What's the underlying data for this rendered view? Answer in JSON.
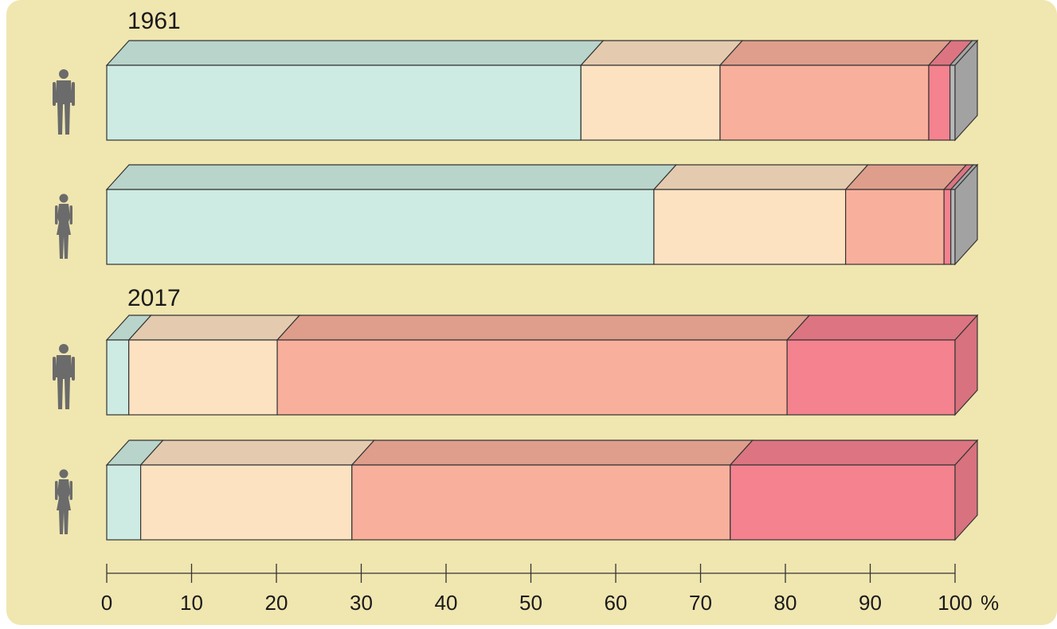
{
  "chart_data": {
    "type": "bar",
    "orientation": "horizontal",
    "stacked": true,
    "style": "3d-bars",
    "background_color": "#f0e6b0",
    "xlim": [
      0,
      100
    ],
    "x_ticks": [
      0,
      10,
      20,
      30,
      40,
      50,
      60,
      70,
      80,
      90,
      100
    ],
    "x_unit": "%",
    "segment_colors": [
      "#cdebe2",
      "#fde2c2",
      "#f8b09c",
      "#f4828f",
      "#b8b8b8"
    ],
    "groups": [
      {
        "label": "1961",
        "bars": [
          {
            "icon": "man-silhouette-icon",
            "values": [
              55.9,
              16.4,
              24.6,
              2.5,
              0.6
            ]
          },
          {
            "icon": "woman-silhouette-icon",
            "values": [
              64.5,
              22.6,
              11.6,
              0.8,
              0.5
            ]
          }
        ]
      },
      {
        "label": "2017",
        "bars": [
          {
            "icon": "man-silhouette-icon",
            "values": [
              2.6,
              17.5,
              60.1,
              19.8,
              0
            ]
          },
          {
            "icon": "woman-silhouette-icon",
            "values": [
              4.0,
              24.9,
              44.6,
              26.5,
              0
            ]
          }
        ]
      }
    ]
  }
}
